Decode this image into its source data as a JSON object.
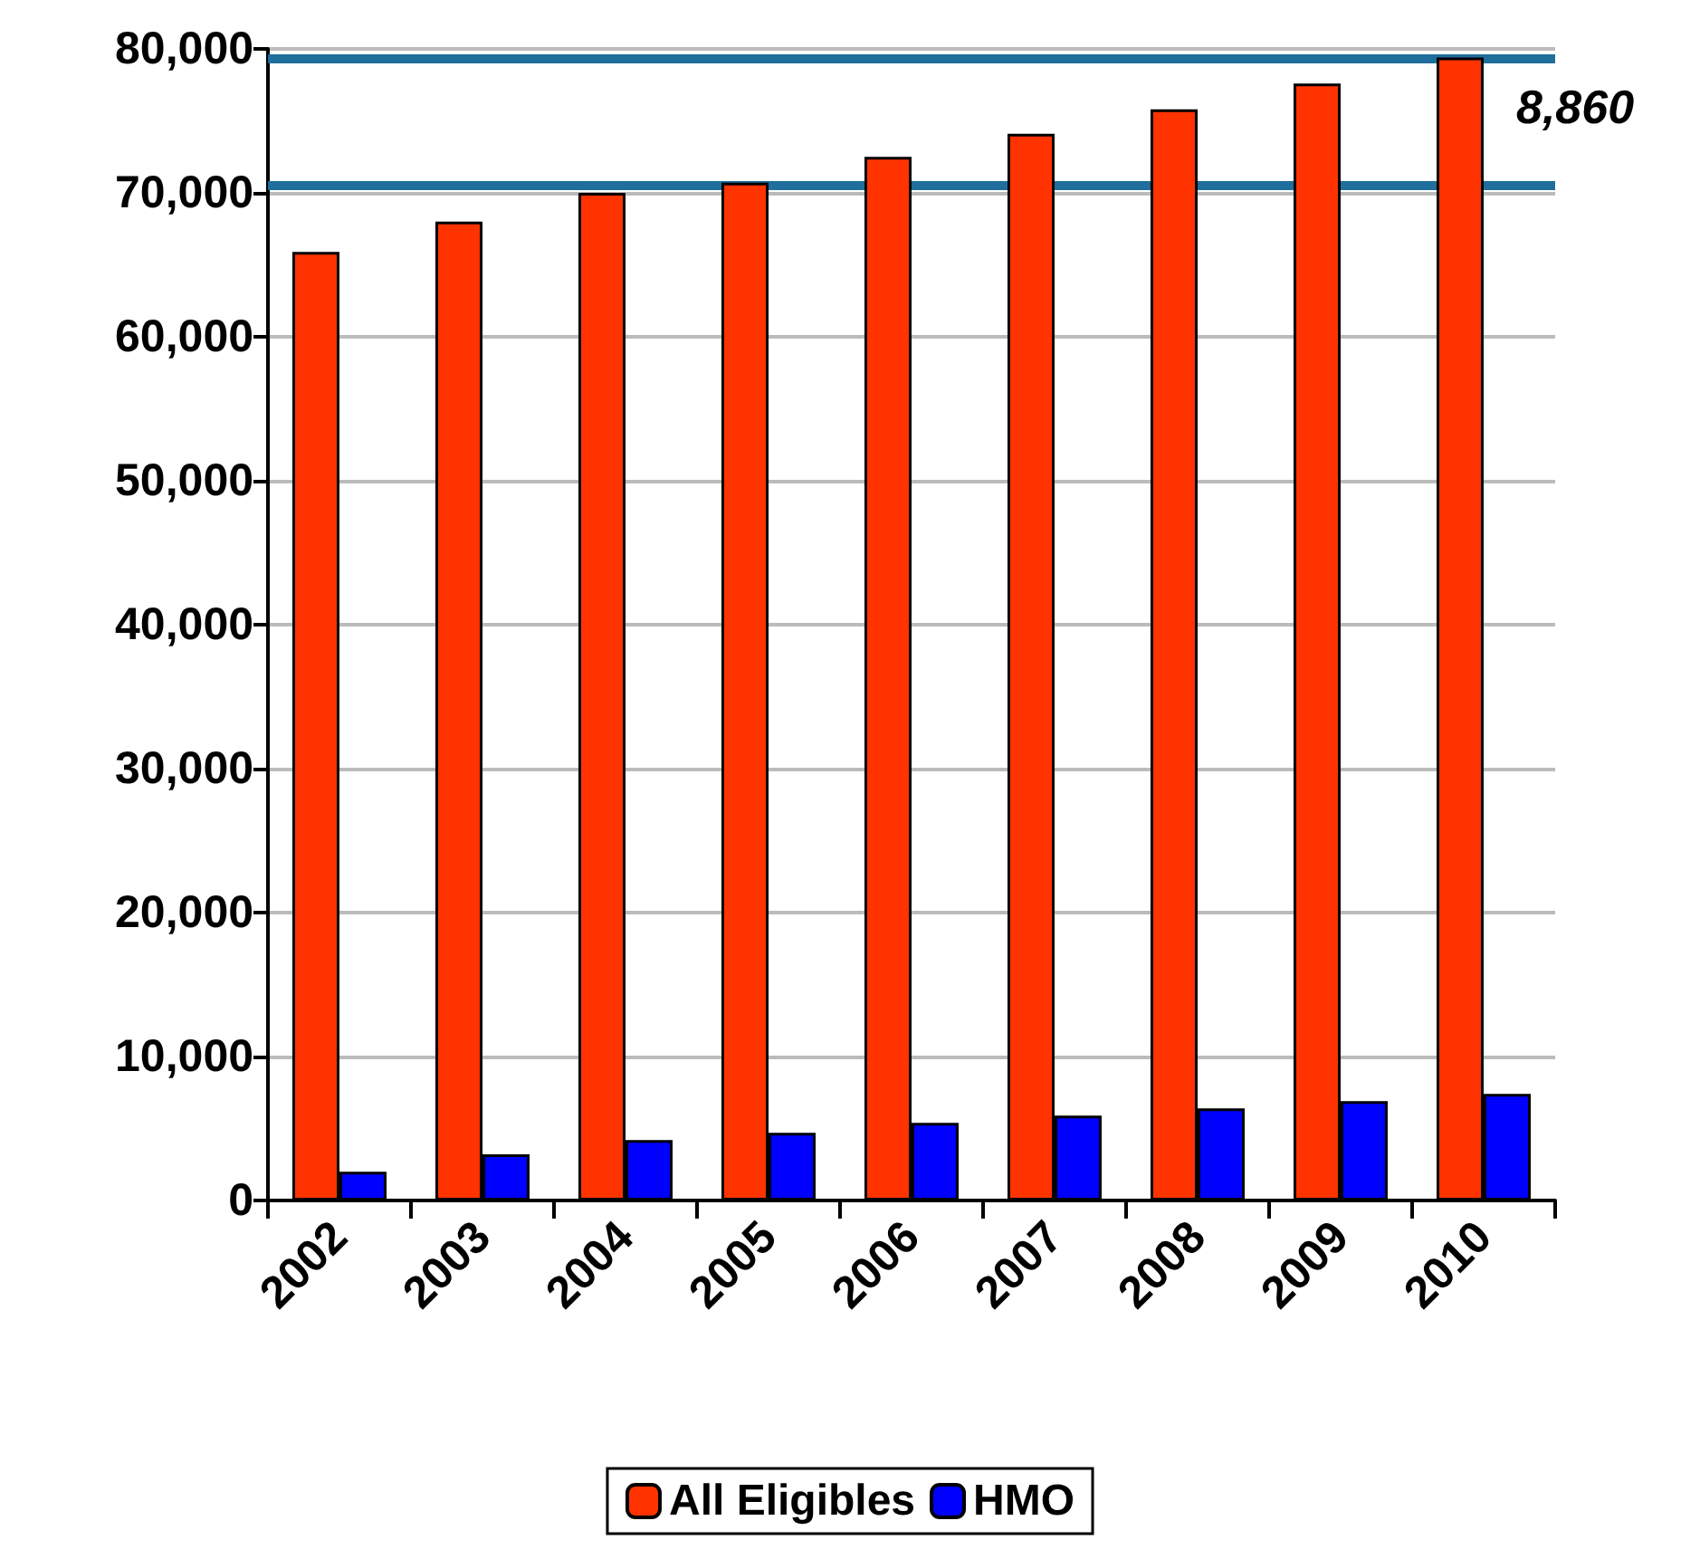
{
  "chart_data": {
    "type": "bar",
    "categories": [
      "2002",
      "2003",
      "2004",
      "2005",
      "2006",
      "2007",
      "2008",
      "2009",
      "2010"
    ],
    "series": [
      {
        "name": "All Eligibles",
        "color": "#ff3300",
        "values": [
          65900,
          68000,
          70000,
          70700,
          72500,
          74100,
          75800,
          77600,
          79400
        ]
      },
      {
        "name": "HMO",
        "color": "#0000ff",
        "values": [
          2000,
          3200,
          4200,
          4700,
          5400,
          5900,
          6400,
          6900,
          7400
        ]
      }
    ],
    "ylim": [
      0,
      80000
    ],
    "yticks": [
      0,
      {
        "value": 10000,
        "label": "10,000"
      },
      {
        "value": 20000,
        "label": "20,000"
      },
      {
        "value": 30000,
        "label": "30,000"
      },
      {
        "value": 40000,
        "label": "40,000"
      },
      {
        "value": 50000,
        "label": "50,000"
      },
      {
        "value": 60000,
        "label": "60,000"
      },
      {
        "value": 70000,
        "label": "70,000"
      },
      {
        "value": 80000,
        "label": "80,000"
      }
    ],
    "ref_lines": [
      {
        "axis": "y",
        "value": 70500,
        "color": "#1f6e9c"
      },
      {
        "axis": "y",
        "value": 79360,
        "color": "#1f6e9c"
      }
    ],
    "annotations": [
      {
        "text": "8,860",
        "x": "2010",
        "y": 76000
      }
    ],
    "grid": "y",
    "legend": "bottom"
  }
}
